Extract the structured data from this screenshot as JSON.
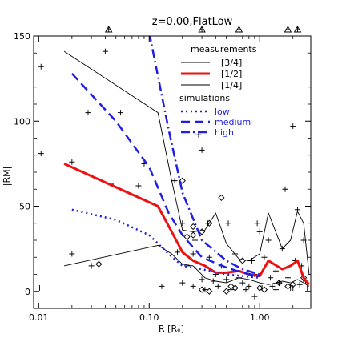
{
  "chart_data": {
    "type": "line",
    "title": "z=0.00,FlatLow",
    "xlabel": "R [Rₑ]",
    "ylabel": "|RM|",
    "xscale": "log",
    "xlim": [
      0.009,
      2.9
    ],
    "ylim": [
      -10,
      150
    ],
    "xticks": [
      0.01,
      0.1,
      1.0
    ],
    "xtick_labels": [
      "0.01",
      "0.10",
      "1.00"
    ],
    "yticks": [
      0,
      50,
      100,
      150
    ],
    "ytick_labels": [
      "0",
      "50",
      "100",
      "150"
    ],
    "grid": false,
    "legend_position": "top-right",
    "legend": {
      "measurements_title": "measurements",
      "measurements": [
        "[3/4]",
        "[1/2]",
        "[1/4]"
      ],
      "simulations_title": "simulations",
      "simulations": [
        "low",
        "medium",
        "high"
      ]
    },
    "colors": {
      "measurement": "#000000",
      "median": "#ee1111",
      "simulation": "#1f1fe0",
      "sim_text": "#1f1fe0"
    },
    "series": [
      {
        "name": "[3/4]",
        "style": "solid-thin",
        "color": "#000000",
        "x": [
          0.017,
          0.12,
          0.16,
          0.2,
          0.25,
          0.32,
          0.4,
          0.5,
          0.65,
          0.8,
          1.0,
          1.2,
          1.6,
          1.9,
          2.2,
          2.5,
          2.8
        ],
        "y": [
          141,
          105,
          65,
          36,
          35,
          36,
          46,
          28,
          19,
          18,
          22,
          46,
          25,
          30,
          47,
          40,
          10
        ]
      },
      {
        "name": "[1/2]",
        "style": "solid-thick",
        "color": "#ee1111",
        "x": [
          0.017,
          0.12,
          0.16,
          0.2,
          0.25,
          0.32,
          0.4,
          0.5,
          0.65,
          0.8,
          1.0,
          1.2,
          1.6,
          1.9,
          2.2,
          2.5,
          2.8
        ],
        "y": [
          75,
          50,
          35,
          23,
          18,
          15,
          11,
          11,
          12,
          10,
          9,
          18,
          13,
          15,
          18,
          8,
          4
        ]
      },
      {
        "name": "[1/4]",
        "style": "solid-thin",
        "color": "#000000",
        "x": [
          0.017,
          0.12,
          0.16,
          0.2,
          0.25,
          0.32,
          0.4,
          0.5,
          0.65,
          0.8,
          1.0,
          1.2,
          1.6,
          1.9,
          2.2,
          2.5,
          2.8
        ],
        "y": [
          15,
          27,
          22,
          16,
          15,
          8,
          6,
          5,
          8,
          7,
          5,
          4,
          6,
          5,
          7,
          5,
          3
        ]
      },
      {
        "name": "low",
        "style": "dotted",
        "color": "#1f1fe0",
        "x": [
          0.02,
          0.05,
          0.1,
          0.15,
          0.2,
          0.3,
          0.5,
          0.7,
          1.0
        ],
        "y": [
          48,
          42,
          33,
          22,
          15,
          13,
          10,
          9,
          8
        ]
      },
      {
        "name": "medium",
        "style": "dashed",
        "color": "#1f1fe0",
        "x": [
          0.02,
          0.05,
          0.1,
          0.15,
          0.2,
          0.3,
          0.5,
          0.7,
          1.0
        ],
        "y": [
          128,
          100,
          73,
          46,
          33,
          20,
          14,
          11,
          9
        ]
      },
      {
        "name": "high",
        "style": "dashdot",
        "color": "#1f1fe0",
        "x": [
          0.1,
          0.15,
          0.2,
          0.3,
          0.5,
          0.7,
          1.0
        ],
        "y": [
          152,
          95,
          58,
          30,
          18,
          13,
          10
        ]
      }
    ],
    "scatter_plus": [
      [
        0.0105,
        132
      ],
      [
        0.0105,
        81
      ],
      [
        0.0102,
        2
      ],
      [
        0.02,
        76
      ],
      [
        0.02,
        22
      ],
      [
        0.028,
        105
      ],
      [
        0.03,
        15
      ],
      [
        0.04,
        141
      ],
      [
        0.045,
        63
      ],
      [
        0.055,
        105
      ],
      [
        0.08,
        62
      ],
      [
        0.09,
        75
      ],
      [
        0.13,
        3
      ],
      [
        0.17,
        65
      ],
      [
        0.18,
        23
      ],
      [
        0.2,
        40
      ],
      [
        0.2,
        5
      ],
      [
        0.22,
        15
      ],
      [
        0.25,
        3
      ],
      [
        0.25,
        22
      ],
      [
        0.26,
        30
      ],
      [
        0.28,
        92
      ],
      [
        0.3,
        83
      ],
      [
        0.3,
        7
      ],
      [
        0.32,
        1
      ],
      [
        0.34,
        40
      ],
      [
        0.35,
        20
      ],
      [
        0.38,
        6
      ],
      [
        0.4,
        10
      ],
      [
        0.42,
        3
      ],
      [
        0.45,
        15
      ],
      [
        0.5,
        7
      ],
      [
        0.52,
        40
      ],
      [
        0.55,
        1
      ],
      [
        0.6,
        22
      ],
      [
        0.65,
        8
      ],
      [
        0.7,
        5
      ],
      [
        0.75,
        1
      ],
      [
        0.8,
        3
      ],
      [
        0.85,
        18
      ],
      [
        0.9,
        10
      ],
      [
        0.95,
        40
      ],
      [
        1.0,
        35
      ],
      [
        1.05,
        2
      ],
      [
        1.1,
        20
      ],
      [
        1.2,
        30
      ],
      [
        1.25,
        8
      ],
      [
        1.3,
        3
      ],
      [
        1.4,
        12
      ],
      [
        1.5,
        5
      ],
      [
        1.6,
        25
      ],
      [
        1.7,
        60
      ],
      [
        1.8,
        8
      ],
      [
        1.9,
        2
      ],
      [
        2.0,
        97
      ],
      [
        2.1,
        18
      ],
      [
        2.2,
        48
      ],
      [
        2.3,
        4
      ],
      [
        2.4,
        15
      ],
      [
        2.5,
        30
      ],
      [
        2.6,
        6
      ],
      [
        2.7,
        2
      ],
      [
        0.9,
        -3
      ],
      [
        1.4,
        1
      ],
      [
        2.0,
        2
      ]
    ],
    "scatter_diamond": [
      [
        0.035,
        16
      ],
      [
        0.22,
        32
      ],
      [
        0.25,
        33
      ],
      [
        0.2,
        65
      ],
      [
        0.25,
        38
      ],
      [
        0.3,
        35
      ],
      [
        0.35,
        40
      ],
      [
        0.45,
        55
      ],
      [
        0.3,
        1
      ],
      [
        0.35,
        0
      ],
      [
        0.5,
        0
      ],
      [
        0.55,
        3
      ],
      [
        0.6,
        2
      ],
      [
        0.7,
        18
      ],
      [
        1.0,
        2
      ],
      [
        1.1,
        1
      ],
      [
        1.5,
        5
      ],
      [
        1.8,
        3
      ],
      [
        2.0,
        4
      ],
      [
        2.5,
        8
      ]
    ],
    "top_markers_x": [
      0.043,
      0.3,
      0.65,
      1.8,
      2.2
    ]
  }
}
